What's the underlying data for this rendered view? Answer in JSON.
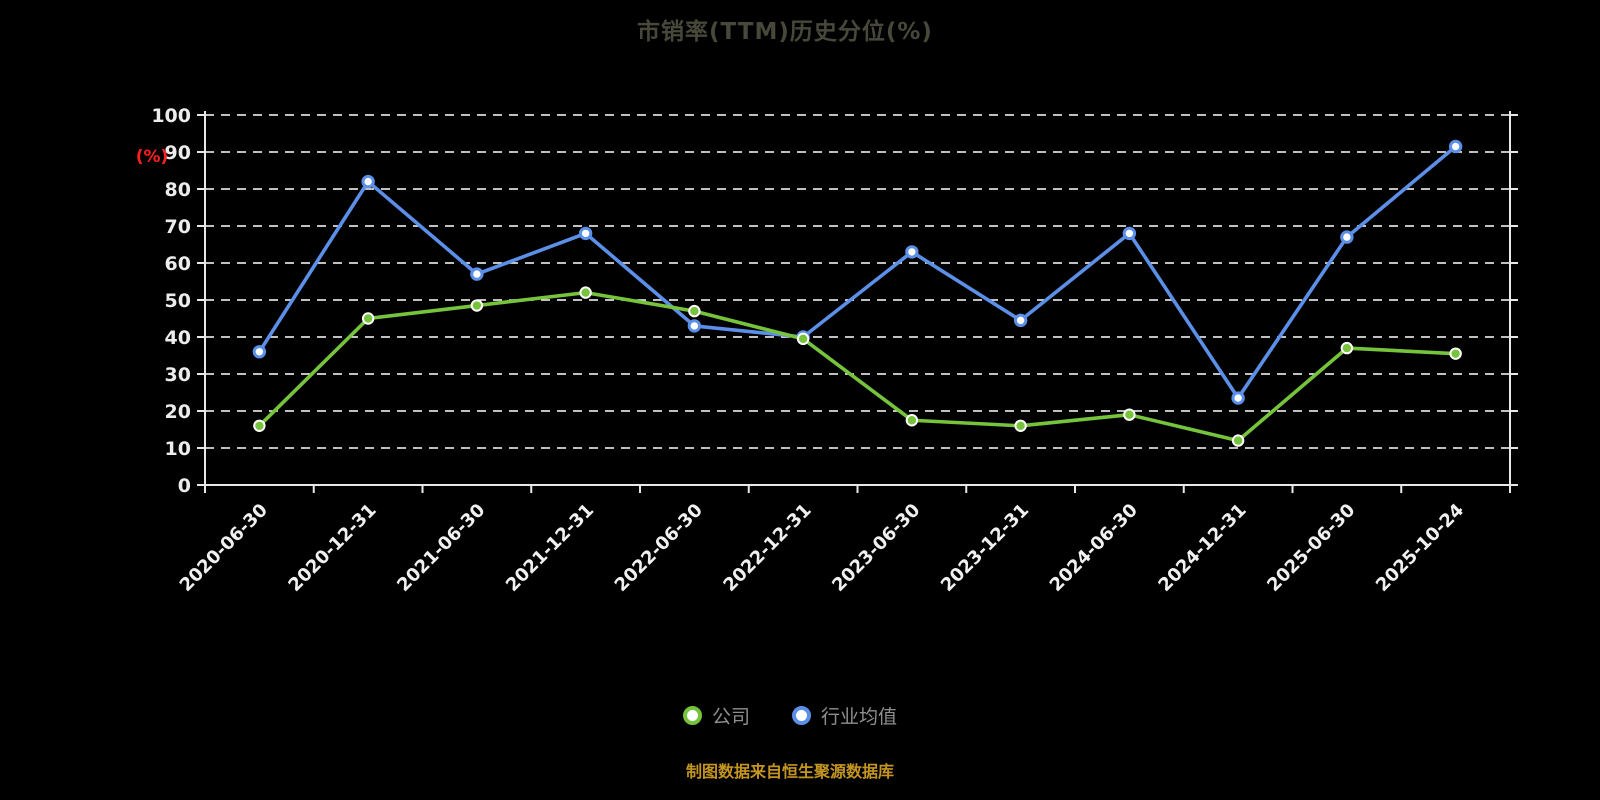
{
  "chart_data": {
    "type": "line",
    "title": "市销率(TTM)历史分位(%)",
    "ylabel": "(%)",
    "xlabel": "",
    "ylim": [
      0,
      100
    ],
    "ytick_step": 10,
    "grid": true,
    "grid_style": "dashed-white",
    "legend_position": "bottom",
    "categories": [
      "2020-06-30",
      "2020-12-31",
      "2021-06-30",
      "2021-12-31",
      "2022-06-30",
      "2022-12-31",
      "2023-06-30",
      "2023-12-31",
      "2024-06-30",
      "2024-12-31",
      "2025-06-30",
      "2025-10-24"
    ],
    "series": [
      {
        "id": "company",
        "name": "公司",
        "color": "#76c33c",
        "marker_fill": "#76c33c",
        "marker_stroke": "#ffffff",
        "marker_stroke_width": 2,
        "values": [
          16,
          45,
          48.5,
          52,
          47,
          39.5,
          17.5,
          16,
          19,
          12,
          37,
          35.5
        ]
      },
      {
        "id": "industry-average",
        "name": "行业均值",
        "color": "#5b8fe8",
        "marker_fill": "#ffffff",
        "marker_stroke": "#5b8fe8",
        "marker_stroke_width": 3,
        "values": [
          36,
          82,
          57,
          68,
          43,
          40,
          63,
          44.5,
          68,
          23.5,
          67,
          91.5
        ]
      }
    ]
  },
  "y_axis_unit_color": "#ff1f1f",
  "source_note": "制图数据来自恒生聚源数据库"
}
